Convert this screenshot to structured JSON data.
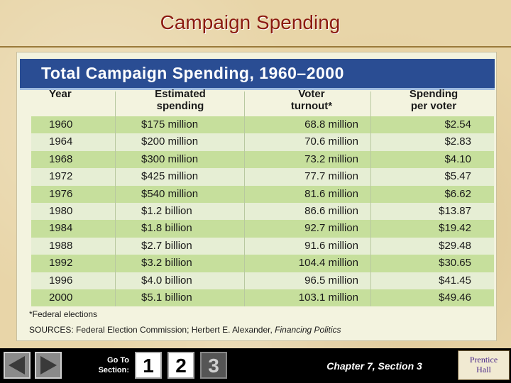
{
  "slide": {
    "title": "Campaign Spending"
  },
  "table": {
    "title": "Total Campaign Spending, 1960–2000",
    "columns": [
      {
        "line1": "Year",
        "line2": ""
      },
      {
        "line1": "Estimated",
        "line2": "spending"
      },
      {
        "line1": "Voter",
        "line2": "turnout*"
      },
      {
        "line1": "Spending",
        "line2": "per voter"
      }
    ],
    "rows": [
      {
        "year": "1960",
        "spending": "$175 million",
        "turnout": "68.8 million",
        "per_voter": "$2.54"
      },
      {
        "year": "1964",
        "spending": "$200 million",
        "turnout": "70.6 million",
        "per_voter": "$2.83"
      },
      {
        "year": "1968",
        "spending": "$300 million",
        "turnout": "73.2 million",
        "per_voter": "$4.10"
      },
      {
        "year": "1972",
        "spending": "$425 million",
        "turnout": "77.7 million",
        "per_voter": "$5.47"
      },
      {
        "year": "1976",
        "spending": "$540 million",
        "turnout": "81.6 million",
        "per_voter": "$6.62"
      },
      {
        "year": "1980",
        "spending": "$1.2 billion",
        "turnout": "86.6 million",
        "per_voter": "$13.87"
      },
      {
        "year": "1984",
        "spending": "$1.8 billion",
        "turnout": "92.7 million",
        "per_voter": "$19.42"
      },
      {
        "year": "1988",
        "spending": "$2.7 billion",
        "turnout": "91.6 million",
        "per_voter": "$29.48"
      },
      {
        "year": "1992",
        "spending": "$3.2 billion",
        "turnout": "104.4 million",
        "per_voter": "$30.65"
      },
      {
        "year": "1996",
        "spending": "$4.0 billion",
        "turnout": "96.5 million",
        "per_voter": "$41.45"
      },
      {
        "year": "2000",
        "spending": "$5.1 billion",
        "turnout": "103.1 million",
        "per_voter": "$49.46"
      }
    ],
    "footnote": "*Federal elections",
    "sources_prefix": "SOURCES: Federal Election Commission; Herbert E. Alexander,",
    "sources_title": "Financing Politics"
  },
  "footer": {
    "goto_line1": "Go To",
    "goto_line2": "Section:",
    "sections": [
      "1",
      "2",
      "3"
    ],
    "active_section": "3",
    "chapter": "Chapter 7, Section 3",
    "logo_line1": "Prentice",
    "logo_line2": "Hall",
    "icons": {
      "prev": "triangle-left-icon",
      "next": "triangle-right-icon"
    },
    "colors": {
      "active_section_bg": "#555555",
      "section_bg": "#ffffff"
    }
  }
}
